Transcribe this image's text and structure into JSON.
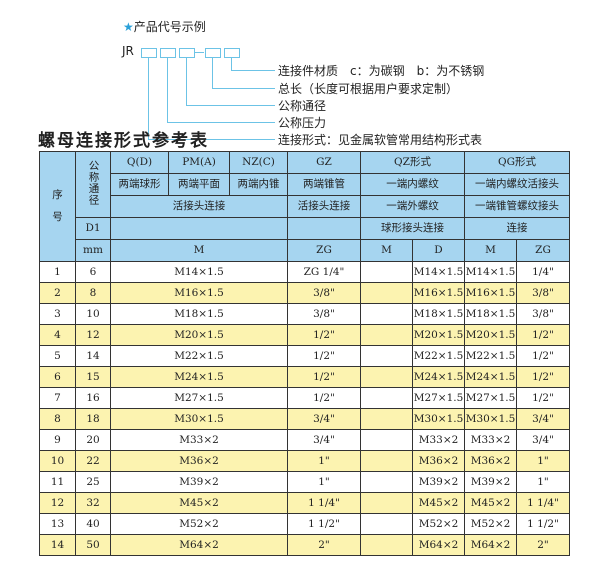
{
  "legend": {
    "heading": "产品代号示例",
    "star_icon": "star",
    "code_prefix": "JR",
    "dash": "-",
    "items": [
      "连接件材质　c：为碳钢　b：为不锈钢",
      "总长（长度可根据用户要求定制）",
      "公称通径",
      "公称压力",
      "连接形式：见金属软管常用结构形式表"
    ]
  },
  "title": "螺母连接形式参考表",
  "header": {
    "seq": "序号",
    "seq_top": "序",
    "seq_bottom": "号",
    "nominal": "公称通径",
    "d1": "D1",
    "mm": "mm",
    "q": "Q(D)",
    "pm": "PM(A)",
    "nz": "NZ(C)",
    "gz": "GZ",
    "qz": "QZ形式",
    "qg": "QG形式",
    "q2": "两端球形",
    "pm2": "两端平面",
    "nz2": "两端内锥",
    "gz2": "两端锥管",
    "qz2": "一端内螺纹",
    "qg2": "一端内螺纹活接头",
    "r3a": "活接头连接",
    "gz3": "活接头连接",
    "qz3": "一端外螺纹",
    "qg3": "一端锥管螺纹接头",
    "qz4": "球形接头连接",
    "qg4": "连接",
    "m": "M",
    "zg": "ZG",
    "qzm": "M",
    "qzd": "D",
    "qgm": "M",
    "qgzg": "ZG"
  },
  "colors": {
    "header": "#a6d5f0",
    "stripe": "#fcf3b0"
  },
  "rows": [
    {
      "n": "1",
      "d": "6",
      "m": "M14×1.5",
      "zg": "ZG 1/4\"",
      "qzd": "M14×1.5",
      "qgm": "M14×1.5",
      "qgzg": "1/4\""
    },
    {
      "n": "2",
      "d": "8",
      "m": "M16×1.5",
      "zg": "3/8\"",
      "qzd": "M16×1.5",
      "qgm": "M16×1.5",
      "qgzg": "3/8\""
    },
    {
      "n": "3",
      "d": "10",
      "m": "M18×1.5",
      "zg": "3/8\"",
      "qzd": "M18×1.5",
      "qgm": "M18×1.5",
      "qgzg": "3/8\""
    },
    {
      "n": "4",
      "d": "12",
      "m": "M20×1.5",
      "zg": "1/2\"",
      "qzd": "M20×1.5",
      "qgm": "M20×1.5",
      "qgzg": "1/2\""
    },
    {
      "n": "5",
      "d": "14",
      "m": "M22×1.5",
      "zg": "1/2\"",
      "qzd": "M22×1.5",
      "qgm": "M22×1.5",
      "qgzg": "1/2\""
    },
    {
      "n": "6",
      "d": "15",
      "m": "M24×1.5",
      "zg": "1/2\"",
      "qzd": "M24×1.5",
      "qgm": "M24×1.5",
      "qgzg": "1/2\""
    },
    {
      "n": "7",
      "d": "16",
      "m": "M27×1.5",
      "zg": "1/2\"",
      "qzd": "M27×1.5",
      "qgm": "M27×1.5",
      "qgzg": "1/2\""
    },
    {
      "n": "8",
      "d": "18",
      "m": "M30×1.5",
      "zg": "3/4\"",
      "qzd": "M30×1.5",
      "qgm": "M30×1.5",
      "qgzg": "3/4\""
    },
    {
      "n": "9",
      "d": "20",
      "m": "M33×2",
      "zg": "3/4\"",
      "qzd": "M33×2",
      "qgm": "M33×2",
      "qgzg": "3/4\""
    },
    {
      "n": "10",
      "d": "22",
      "m": "M36×2",
      "zg": "1\"",
      "qzd": "M36×2",
      "qgm": "M36×2",
      "qgzg": "1\""
    },
    {
      "n": "11",
      "d": "25",
      "m": "M39×2",
      "zg": "1\"",
      "qzd": "M39×2",
      "qgm": "M39×2",
      "qgzg": "1\""
    },
    {
      "n": "12",
      "d": "32",
      "m": "M45×2",
      "zg": "1 1/4\"",
      "qzd": "M45×2",
      "qgm": "M45×2",
      "qgzg": "1 1/4\""
    },
    {
      "n": "13",
      "d": "40",
      "m": "M52×2",
      "zg": "1 1/2\"",
      "qzd": "M52×2",
      "qgm": "M52×2",
      "qgzg": "1 1/2\""
    },
    {
      "n": "14",
      "d": "50",
      "m": "M64×2",
      "zg": "2\"",
      "qzd": "M64×2",
      "qgm": "M64×2",
      "qgzg": "2\""
    }
  ]
}
